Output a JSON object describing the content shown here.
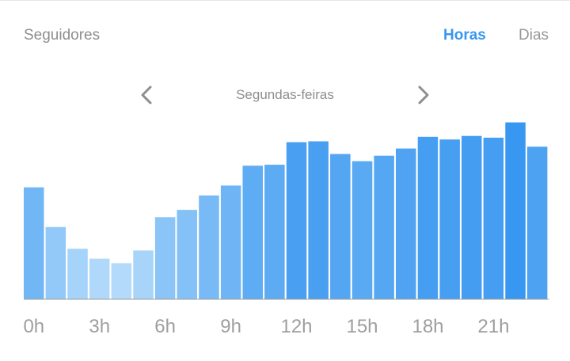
{
  "header": {
    "title": "Seguidores",
    "tabs": [
      {
        "label": "Horas",
        "active": true
      },
      {
        "label": "Dias",
        "active": false
      }
    ]
  },
  "nav": {
    "day": "Segundas-feiras",
    "prev_icon": "chevron-left-icon",
    "next_icon": "chevron-right-icon"
  },
  "colors": {
    "accent": "#3897f0",
    "bar_low": "#b3dafb",
    "bar_high": "#3897f0",
    "label": "#9e9e9e"
  },
  "chart_data": {
    "type": "bar",
    "categories": [
      "0h",
      "1h",
      "2h",
      "3h",
      "4h",
      "5h",
      "6h",
      "7h",
      "8h",
      "9h",
      "10h",
      "11h",
      "12h",
      "13h",
      "14h",
      "15h",
      "16h",
      "17h",
      "18h",
      "19h",
      "20h",
      "21h",
      "22h",
      "23h"
    ],
    "tick_labels": [
      "0h",
      "3h",
      "6h",
      "9h",
      "12h",
      "15h",
      "18h",
      "21h"
    ],
    "tick_every": 3,
    "values": [
      124,
      80,
      56,
      45,
      40,
      54,
      91,
      99,
      115,
      126,
      148,
      149,
      174,
      175,
      161,
      153,
      159,
      167,
      180,
      177,
      181,
      179,
      196,
      169
    ],
    "ylim": [
      0,
      200
    ],
    "grid": false,
    "legend": "none"
  }
}
